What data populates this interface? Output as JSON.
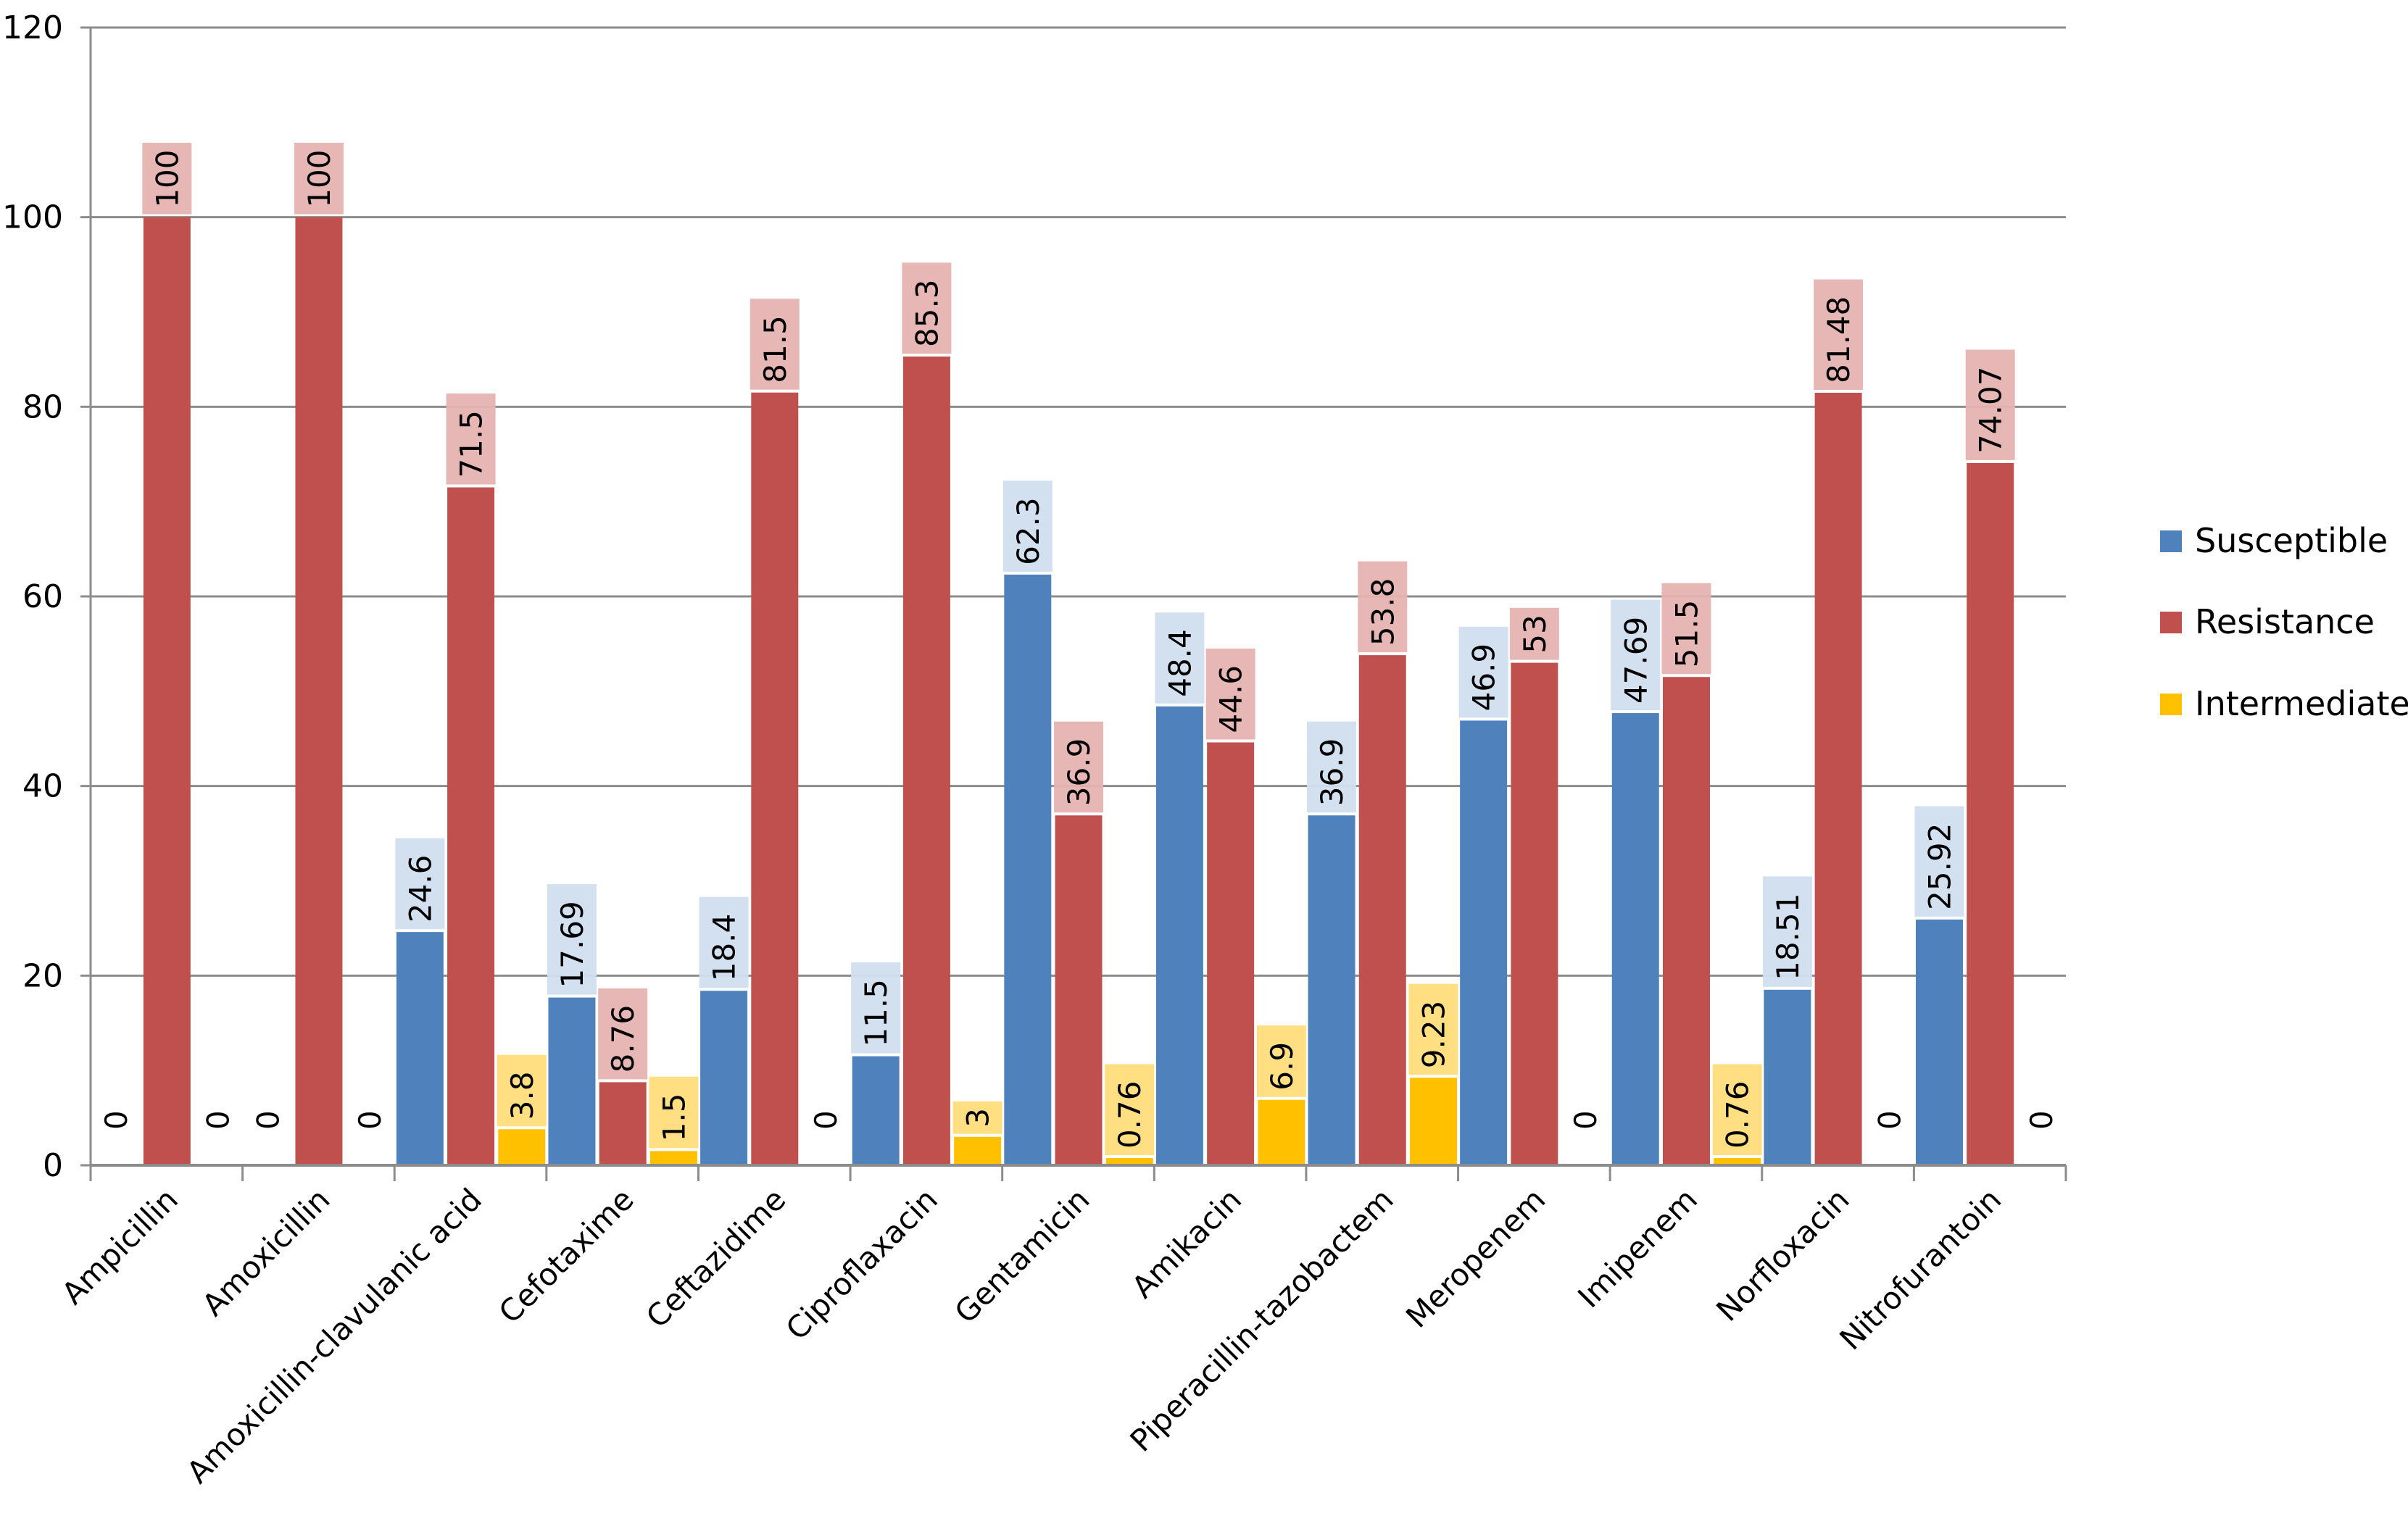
{
  "chart_data": {
    "type": "bar",
    "title": "",
    "xlabel": "",
    "ylabel": "",
    "ylim": [
      0,
      120
    ],
    "yticks": [
      0,
      20,
      40,
      60,
      80,
      100,
      120
    ],
    "grid": true,
    "legend_position": "right",
    "categories": [
      "Ampicillin",
      "Amoxicillin",
      "Amoxicillin-clavulanic acid",
      "Cefotaxime",
      "Ceftazidime",
      "Ciproflaxacin",
      "Gentamicin",
      "Amikacin",
      "Piperacillin-tazobactem",
      "Meropenem",
      "Imipenem",
      "Norfloxacin",
      "Nitrofurantoin"
    ],
    "series": [
      {
        "name": "Susceptible",
        "color": "#4f81bd",
        "label_bg": "#d0deef",
        "values": [
          0,
          0,
          24.6,
          17.69,
          18.4,
          11.5,
          62.3,
          48.4,
          36.9,
          46.9,
          47.69,
          18.51,
          25.92
        ],
        "labels": [
          "0",
          "0",
          "24.6",
          "17.69",
          "18.4",
          "11.5",
          "62.3",
          "48.4",
          "36.9",
          "46.9",
          "47.69",
          "18.51",
          "25.92"
        ]
      },
      {
        "name": "Resistance",
        "color": "#c0504d",
        "label_bg": "#e6b3b2",
        "values": [
          100,
          100,
          71.5,
          8.76,
          81.5,
          85.3,
          36.9,
          44.6,
          53.8,
          53,
          51.5,
          81.48,
          74.07
        ],
        "labels": [
          "100",
          "100",
          "71.5",
          "8.76",
          "81.5",
          "85.3",
          "36.9",
          "44.6",
          "53.8",
          "53",
          "51.5",
          "81.48",
          "74.07"
        ]
      },
      {
        "name": "Intermediate",
        "color": "#ffc000",
        "label_bg": "#ffdd7a",
        "values": [
          0,
          0,
          3.8,
          1.5,
          0,
          3,
          0.76,
          6.9,
          9.23,
          0,
          0.76,
          0,
          0
        ],
        "labels": [
          "0",
          "0",
          "3.8",
          "1.5",
          "0",
          "3",
          "0.76",
          "6.9",
          "9.23",
          "0",
          "0.76",
          "0",
          "0"
        ]
      }
    ]
  }
}
